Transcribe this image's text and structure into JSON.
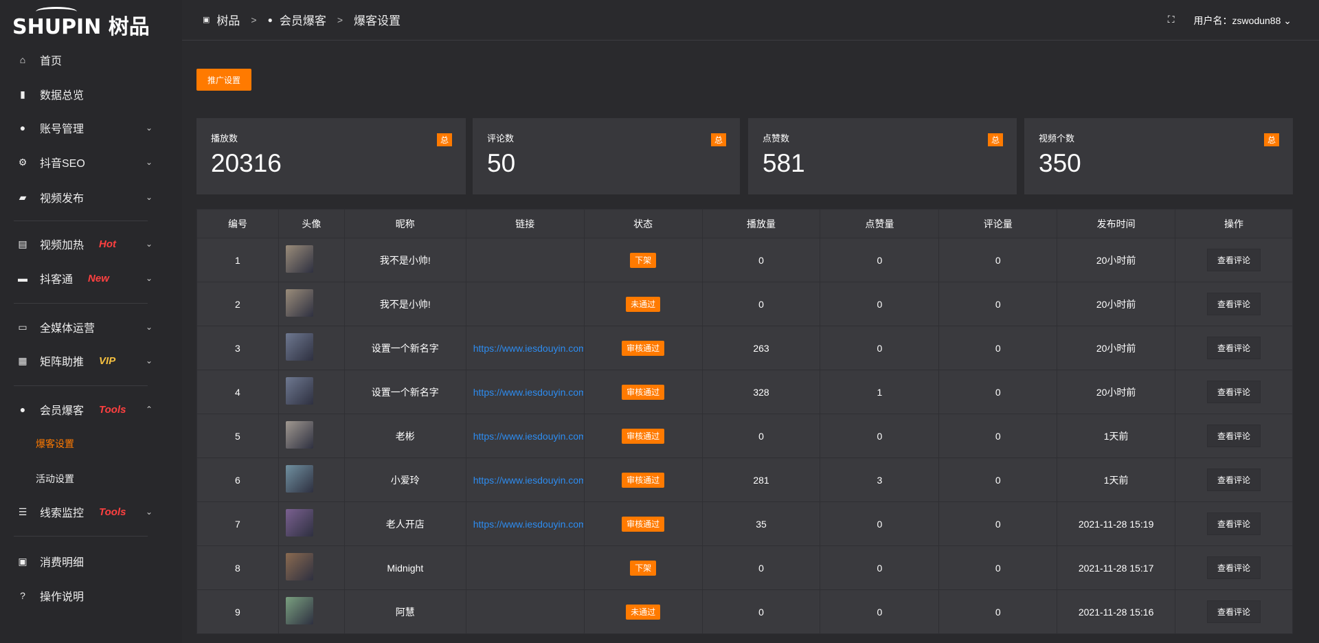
{
  "brand": {
    "logo": "SHUPIN 树品"
  },
  "sidebar": {
    "items": [
      {
        "label": "首页",
        "icon": "home-icon",
        "glyph": "⌂"
      },
      {
        "label": "数据总览",
        "icon": "bar-chart-icon",
        "glyph": "▮"
      },
      {
        "label": "账号管理",
        "icon": "user-icon",
        "glyph": "●",
        "chev": "⌄"
      },
      {
        "label": "抖音SEO",
        "icon": "gear-icon",
        "glyph": "⚙",
        "chev": "⌄"
      },
      {
        "label": "视频发布",
        "icon": "camera-icon",
        "glyph": "▰",
        "chev": "⌄"
      },
      {
        "label": "视频加热",
        "icon": "billboard-icon",
        "glyph": "▤",
        "tag": "Hot",
        "tag_color": "#ff4040",
        "chev": "⌄"
      },
      {
        "label": "抖客通",
        "icon": "chat-icon",
        "glyph": "▬",
        "tag": "New",
        "tag_color": "#ff4040",
        "chev": "⌄"
      },
      {
        "label": "全媒体运营",
        "icon": "monitor-icon",
        "glyph": "▭",
        "chev": "⌄"
      },
      {
        "label": "矩阵助推",
        "icon": "grid-icon",
        "glyph": "▦",
        "tag": "VIP",
        "tag_color": "#f5c040",
        "chev": "⌄"
      },
      {
        "label": "会员爆客",
        "icon": "user-icon",
        "glyph": "●",
        "tag": "Tools",
        "tag_color": "#ff4040",
        "chev": "⌃"
      },
      {
        "label": "线索监控",
        "icon": "sliders-icon",
        "glyph": "☰",
        "tag": "Tools",
        "tag_color": "#ff4040",
        "chev": "⌄"
      },
      {
        "label": "消费明细",
        "icon": "wallet-icon",
        "glyph": "▣"
      },
      {
        "label": "操作说明",
        "icon": "help-icon",
        "glyph": "?"
      }
    ],
    "sub_items": [
      {
        "label": "爆客设置",
        "active": true
      },
      {
        "label": "活动设置",
        "active": false
      }
    ]
  },
  "breadcrumb": [
    {
      "label": "树品",
      "icon": "image-icon"
    },
    {
      "label": "会员爆客",
      "icon": "user-icon"
    },
    {
      "label": "爆客设置"
    }
  ],
  "breadcrumb_sep": ">",
  "header": {
    "user_label": "用户名：zswodun88",
    "fullscreen_icon": "fullscreen-icon"
  },
  "promo_button": "推广设置",
  "accent": "#ff7a00",
  "stats": [
    {
      "label": "播放数",
      "value": "20316",
      "badge": "总"
    },
    {
      "label": "评论数",
      "value": "50",
      "badge": "总"
    },
    {
      "label": "点赞数",
      "value": "581",
      "badge": "总"
    },
    {
      "label": "视频个数",
      "value": "350",
      "badge": "总"
    }
  ],
  "table": {
    "headers": [
      "编号",
      "头像",
      "昵称",
      "链接",
      "状态",
      "播放量",
      "点赞量",
      "评论量",
      "发布时间",
      "操作"
    ],
    "action_label": "查看评论",
    "rows": [
      {
        "id": "1",
        "nick": "我不是小帅!",
        "link": "",
        "status": "下架",
        "plays": "0",
        "likes": "0",
        "comments": "0",
        "time": "20小时前",
        "avatar": "#9a8c7a"
      },
      {
        "id": "2",
        "nick": "我不是小帅!",
        "link": "",
        "status": "未通过",
        "plays": "0",
        "likes": "0",
        "comments": "0",
        "time": "20小时前",
        "avatar": "#9a8c7a"
      },
      {
        "id": "3",
        "nick": "设置一个新名字",
        "link": "https://www.iesdouyin.com",
        "status": "审核通过",
        "plays": "263",
        "likes": "0",
        "comments": "0",
        "time": "20小时前",
        "avatar": "#6e7890"
      },
      {
        "id": "4",
        "nick": "设置一个新名字",
        "link": "https://www.iesdouyin.com",
        "status": "审核通过",
        "plays": "328",
        "likes": "1",
        "comments": "0",
        "time": "20小时前",
        "avatar": "#6e7890"
      },
      {
        "id": "5",
        "nick": "老彬",
        "link": "https://www.iesdouyin.com",
        "status": "审核通过",
        "plays": "0",
        "likes": "0",
        "comments": "0",
        "time": "1天前",
        "avatar": "#a09890"
      },
      {
        "id": "6",
        "nick": "小爱玲",
        "link": "https://www.iesdouyin.com",
        "status": "审核通过",
        "plays": "281",
        "likes": "3",
        "comments": "0",
        "time": "1天前",
        "avatar": "#7090a0"
      },
      {
        "id": "7",
        "nick": "老人开店",
        "link": "https://www.iesdouyin.com",
        "status": "审核通过",
        "plays": "35",
        "likes": "0",
        "comments": "0",
        "time": "2021-11-28 15:19",
        "avatar": "#7a6090"
      },
      {
        "id": "8",
        "nick": "Midnight",
        "link": "",
        "status": "下架",
        "plays": "0",
        "likes": "0",
        "comments": "0",
        "time": "2021-11-28 15:17",
        "avatar": "#8a6a50"
      },
      {
        "id": "9",
        "nick": "阿慧",
        "link": "",
        "status": "未通过",
        "plays": "0",
        "likes": "0",
        "comments": "0",
        "time": "2021-11-28 15:16",
        "avatar": "#7aa080"
      }
    ]
  }
}
